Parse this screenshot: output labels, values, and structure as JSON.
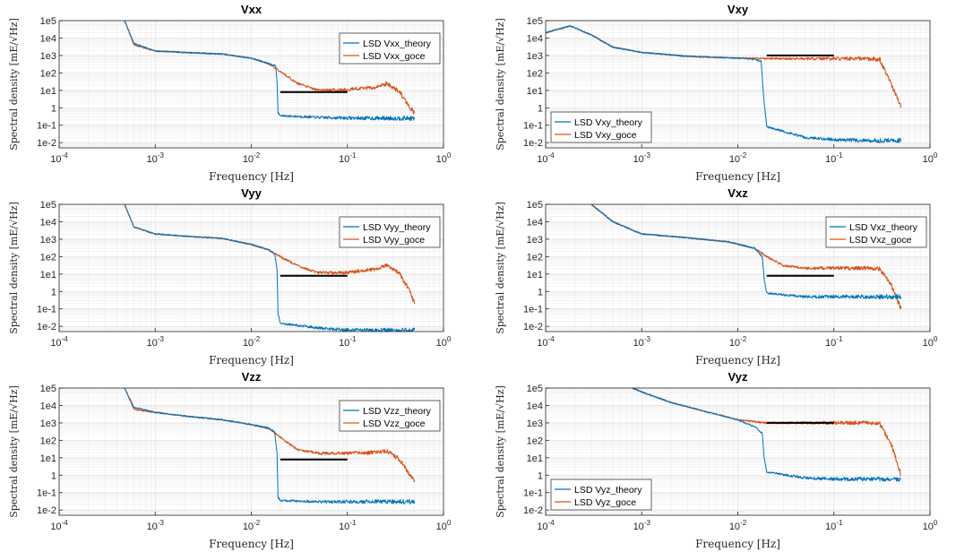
{
  "colors": {
    "theory": "#0072BD",
    "goce": "#D95319",
    "reference": "#000000",
    "grid": "#dedede",
    "axis": "#262626"
  },
  "chart_data": [
    {
      "type": "line",
      "title": "Vxx",
      "xlabel": "Frequency [Hz]",
      "ylabel": "Spectral density [mE/√Hz]",
      "xscale": "log",
      "yscale": "log",
      "xlim": [
        0.0001,
        1
      ],
      "ylim": [
        0.005,
        100000
      ],
      "x_ticks": [
        "10^-4",
        "10^-3",
        "10^-2",
        "10^-1",
        "10^0"
      ],
      "y_ticks": [
        "1e-2",
        "1e-1",
        "1",
        "1e1",
        "1e2",
        "1e3",
        "1e4",
        "1e5"
      ],
      "grid": true,
      "legend_position": "top-right",
      "reference_line": {
        "x": [
          0.02,
          0.1
        ],
        "y": 8
      },
      "series": [
        {
          "name": "LSD Vxx_theory",
          "x": [
            0.00048,
            0.0006,
            0.001,
            0.002,
            0.005,
            0.01,
            0.015,
            0.018,
            0.0185,
            0.019,
            0.02,
            0.05,
            0.1,
            0.2,
            0.5
          ],
          "y": [
            100000,
            5000,
            1800,
            1500,
            1200,
            700,
            350,
            250,
            30,
            0.5,
            0.35,
            0.28,
            0.26,
            0.25,
            0.25
          ]
        },
        {
          "name": "LSD Vxx_goce",
          "x": [
            0.00048,
            0.0006,
            0.001,
            0.002,
            0.005,
            0.01,
            0.015,
            0.02,
            0.03,
            0.05,
            0.1,
            0.2,
            0.26,
            0.35,
            0.45,
            0.5
          ],
          "y": [
            100000,
            4000,
            1800,
            1500,
            1200,
            700,
            350,
            120,
            25,
            10,
            11,
            15,
            25,
            8,
            1,
            0.5
          ]
        }
      ]
    },
    {
      "type": "line",
      "title": "Vxy",
      "xlabel": "Frequency [Hz]",
      "ylabel": "Spectral density [mE/√Hz]",
      "xscale": "log",
      "yscale": "log",
      "xlim": [
        0.0001,
        1
      ],
      "ylim": [
        0.005,
        100000
      ],
      "x_ticks": [
        "10^-4",
        "10^-3",
        "10^-2",
        "10^-1",
        "10^0"
      ],
      "y_ticks": [
        "1e-2",
        "1e-1",
        "1",
        "1e1",
        "1e2",
        "1e3",
        "1e4",
        "1e5"
      ],
      "grid": true,
      "legend_position": "bottom-left",
      "reference_line": {
        "x": [
          0.02,
          0.1
        ],
        "y": 1000
      },
      "series": [
        {
          "name": "LSD Vxy_theory",
          "x": [
            0.0001,
            0.00018,
            0.0003,
            0.0005,
            0.001,
            0.003,
            0.01,
            0.015,
            0.0175,
            0.0185,
            0.02,
            0.05,
            0.1,
            0.2,
            0.5
          ],
          "y": [
            20000,
            50000,
            15000,
            3000,
            1500,
            900,
            700,
            600,
            450,
            5,
            0.08,
            0.02,
            0.015,
            0.013,
            0.013
          ]
        },
        {
          "name": "LSD Vxy_goce",
          "x": [
            0.0001,
            0.00018,
            0.0003,
            0.0005,
            0.001,
            0.003,
            0.01,
            0.05,
            0.1,
            0.2,
            0.3,
            0.4,
            0.5
          ],
          "y": [
            20000,
            50000,
            15000,
            3000,
            1500,
            900,
            700,
            650,
            650,
            650,
            600,
            20,
            1
          ]
        }
      ]
    },
    {
      "type": "line",
      "title": "Vyy",
      "xlabel": "Frequency [Hz]",
      "ylabel": "Spectral density [mE/√Hz]",
      "xscale": "log",
      "yscale": "log",
      "xlim": [
        0.0001,
        1
      ],
      "ylim": [
        0.005,
        100000
      ],
      "x_ticks": [
        "10^-4",
        "10^-3",
        "10^-2",
        "10^-1",
        "10^0"
      ],
      "y_ticks": [
        "1e-2",
        "1e-1",
        "1",
        "1e1",
        "1e2",
        "1e3",
        "1e4",
        "1e5"
      ],
      "grid": true,
      "legend_position": "top-right",
      "reference_line": {
        "x": [
          0.02,
          0.1
        ],
        "y": 8
      },
      "series": [
        {
          "name": "LSD Vyy_theory",
          "x": [
            0.00048,
            0.0006,
            0.001,
            0.002,
            0.005,
            0.01,
            0.015,
            0.0175,
            0.0185,
            0.019,
            0.02,
            0.05,
            0.1,
            0.2,
            0.5
          ],
          "y": [
            100000,
            5000,
            2000,
            1500,
            1100,
            500,
            250,
            150,
            20,
            0.05,
            0.015,
            0.008,
            0.006,
            0.006,
            0.006
          ]
        },
        {
          "name": "LSD Vyy_goce",
          "x": [
            0.00048,
            0.0006,
            0.001,
            0.002,
            0.005,
            0.01,
            0.015,
            0.02,
            0.03,
            0.05,
            0.1,
            0.2,
            0.26,
            0.35,
            0.45,
            0.5
          ],
          "y": [
            100000,
            5000,
            2000,
            1500,
            1100,
            500,
            250,
            100,
            30,
            12,
            12,
            20,
            35,
            10,
            1,
            0.2
          ]
        }
      ]
    },
    {
      "type": "line",
      "title": "Vxz",
      "xlabel": "Frequency [Hz]",
      "ylabel": "Spectral density [mE/√Hz]",
      "xscale": "log",
      "yscale": "log",
      "xlim": [
        0.0001,
        1
      ],
      "ylim": [
        0.005,
        100000
      ],
      "x_ticks": [
        "10^-4",
        "10^-3",
        "10^-2",
        "10^-1",
        "10^0"
      ],
      "y_ticks": [
        "1e-2",
        "1e-1",
        "1",
        "1e1",
        "1e2",
        "1e3",
        "1e4",
        "1e5"
      ],
      "grid": true,
      "legend_position": "top-right",
      "reference_line": {
        "x": [
          0.02,
          0.1
        ],
        "y": 8
      },
      "series": [
        {
          "name": "LSD Vxz_theory",
          "x": [
            0.0003,
            0.0005,
            0.001,
            0.003,
            0.008,
            0.015,
            0.018,
            0.0188,
            0.02,
            0.05,
            0.1,
            0.2,
            0.5
          ],
          "y": [
            100000,
            10000,
            2000,
            1200,
            700,
            300,
            100,
            5,
            0.8,
            0.5,
            0.5,
            0.5,
            0.5
          ]
        },
        {
          "name": "LSD Vxz_goce",
          "x": [
            0.0003,
            0.0005,
            0.001,
            0.003,
            0.008,
            0.015,
            0.02,
            0.03,
            0.05,
            0.1,
            0.2,
            0.3,
            0.4,
            0.5
          ],
          "y": [
            100000,
            10000,
            2000,
            1200,
            700,
            300,
            100,
            30,
            22,
            22,
            22,
            20,
            2,
            0.1
          ]
        }
      ]
    },
    {
      "type": "line",
      "title": "Vzz",
      "xlabel": "Frequency [Hz]",
      "ylabel": "Spectral density [mE/√Hz]",
      "xscale": "log",
      "yscale": "log",
      "xlim": [
        0.0001,
        1
      ],
      "ylim": [
        0.005,
        100000
      ],
      "x_ticks": [
        "10^-4",
        "10^-3",
        "10^-2",
        "10^-1",
        "10^0"
      ],
      "y_ticks": [
        "1e-2",
        "1e-1",
        "1",
        "1e1",
        "1e2",
        "1e3",
        "1e4",
        "1e5"
      ],
      "grid": true,
      "legend_position": "top-right",
      "reference_line": {
        "x": [
          0.02,
          0.1
        ],
        "y": 8
      },
      "series": [
        {
          "name": "LSD Vzz_theory",
          "x": [
            0.00048,
            0.0006,
            0.001,
            0.002,
            0.005,
            0.01,
            0.015,
            0.0175,
            0.0185,
            0.019,
            0.02,
            0.05,
            0.1,
            0.2,
            0.5
          ],
          "y": [
            100000,
            8000,
            4000,
            2500,
            1500,
            800,
            500,
            300,
            20,
            0.05,
            0.035,
            0.03,
            0.03,
            0.03,
            0.03
          ]
        },
        {
          "name": "LSD Vzz_goce",
          "x": [
            0.00048,
            0.0006,
            0.001,
            0.002,
            0.005,
            0.01,
            0.015,
            0.02,
            0.03,
            0.05,
            0.1,
            0.2,
            0.26,
            0.35,
            0.45,
            0.5
          ],
          "y": [
            100000,
            6000,
            4000,
            2500,
            1500,
            800,
            500,
            150,
            30,
            18,
            18,
            20,
            25,
            8,
            1,
            0.5
          ]
        }
      ]
    },
    {
      "type": "line",
      "title": "Vyz",
      "xlabel": "Frequency [Hz]",
      "ylabel": "Spectral density [mE/√Hz]",
      "xscale": "log",
      "yscale": "log",
      "xlim": [
        0.0001,
        1
      ],
      "ylim": [
        0.005,
        100000
      ],
      "x_ticks": [
        "10^-4",
        "10^-3",
        "10^-2",
        "10^-1",
        "10^0"
      ],
      "y_ticks": [
        "1e-2",
        "1e-1",
        "1",
        "1e1",
        "1e2",
        "1e3",
        "1e4",
        "1e5"
      ],
      "grid": true,
      "legend_position": "bottom-left",
      "reference_line": {
        "x": [
          0.02,
          0.1
        ],
        "y": 1000
      },
      "series": [
        {
          "name": "LSD Vyz_theory",
          "x": [
            0.0008,
            0.001,
            0.002,
            0.005,
            0.01,
            0.015,
            0.018,
            0.0188,
            0.02,
            0.05,
            0.1,
            0.2,
            0.5
          ],
          "y": [
            100000,
            60000,
            15000,
            4000,
            1500,
            600,
            250,
            10,
            1.5,
            0.7,
            0.6,
            0.6,
            0.6
          ]
        },
        {
          "name": "LSD Vyz_goce",
          "x": [
            0.0008,
            0.001,
            0.002,
            0.005,
            0.01,
            0.015,
            0.02,
            0.05,
            0.1,
            0.2,
            0.3,
            0.4,
            0.5
          ],
          "y": [
            100000,
            60000,
            15000,
            4000,
            1500,
            1200,
            1000,
            1000,
            1000,
            1000,
            900,
            50,
            1
          ]
        }
      ]
    }
  ]
}
